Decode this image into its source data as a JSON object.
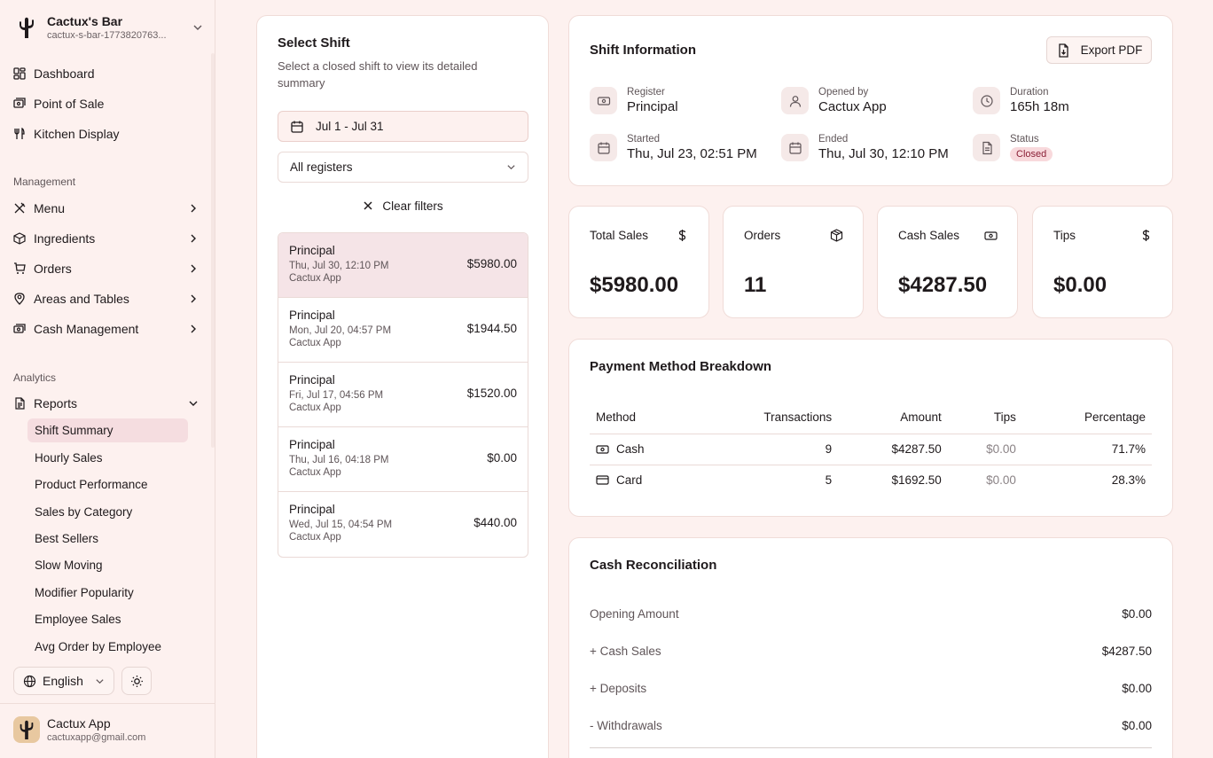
{
  "brand": {
    "name": "Cactux's Bar",
    "subdomain": "cactux-s-bar-1773820763..."
  },
  "nav": {
    "top": [
      {
        "label": "Dashboard",
        "icon": "dashboard-icon"
      },
      {
        "label": "Point of Sale",
        "icon": "pos-icon"
      },
      {
        "label": "Kitchen Display",
        "icon": "utensils-icon"
      }
    ],
    "management_label": "Management",
    "management": [
      {
        "label": "Menu",
        "icon": "utensils-crossed-icon"
      },
      {
        "label": "Ingredients",
        "icon": "package-icon"
      },
      {
        "label": "Orders",
        "icon": "cart-icon"
      },
      {
        "label": "Areas and Tables",
        "icon": "map-pin-icon"
      },
      {
        "label": "Cash Management",
        "icon": "cash-icon"
      }
    ],
    "analytics_label": "Analytics",
    "reports_label": "Reports",
    "reports": [
      "Shift Summary",
      "Hourly Sales",
      "Product Performance",
      "Sales by Category",
      "Best Sellers",
      "Slow Moving",
      "Modifier Popularity",
      "Employee Sales",
      "Avg Order by Employee"
    ]
  },
  "language": "English",
  "user": {
    "name": "Cactux App",
    "email": "cactuxapp@gmail.com"
  },
  "shift_select": {
    "title": "Select Shift",
    "description": "Select a closed shift to view its detailed summary",
    "date_range": "Jul 1 - Jul 31",
    "register_filter": "All registers",
    "clear_filters": "Clear filters",
    "shifts": [
      {
        "register": "Principal",
        "date": "Thu, Jul 30, 12:10 PM",
        "by": "Cactux App",
        "amount": "$5980.00"
      },
      {
        "register": "Principal",
        "date": "Mon, Jul 20, 04:57 PM",
        "by": "Cactux App",
        "amount": "$1944.50"
      },
      {
        "register": "Principal",
        "date": "Fri, Jul 17, 04:56 PM",
        "by": "Cactux App",
        "amount": "$1520.00"
      },
      {
        "register": "Principal",
        "date": "Thu, Jul 16, 04:18 PM",
        "by": "Cactux App",
        "amount": "$0.00"
      },
      {
        "register": "Principal",
        "date": "Wed, Jul 15, 04:54 PM",
        "by": "Cactux App",
        "amount": "$440.00"
      }
    ]
  },
  "shift_info": {
    "title": "Shift Information",
    "export_label": "Export PDF",
    "register_label": "Register",
    "register": "Principal",
    "opened_by_label": "Opened by",
    "opened_by": "Cactux App",
    "duration_label": "Duration",
    "duration": "165h 18m",
    "started_label": "Started",
    "started": "Thu, Jul 23, 02:51 PM",
    "ended_label": "Ended",
    "ended": "Thu, Jul 30, 12:10 PM",
    "status_label": "Status",
    "status": "Closed"
  },
  "stats": [
    {
      "label": "Total Sales",
      "value": "$5980.00",
      "icon": "dollar-icon"
    },
    {
      "label": "Orders",
      "value": "11",
      "icon": "package-icon"
    },
    {
      "label": "Cash Sales",
      "value": "$4287.50",
      "icon": "banknote-icon"
    },
    {
      "label": "Tips",
      "value": "$0.00",
      "icon": "dollar-icon"
    }
  ],
  "payment": {
    "title": "Payment Method Breakdown",
    "headers": [
      "Method",
      "Transactions",
      "Amount",
      "Tips",
      "Percentage"
    ],
    "rows": [
      {
        "method": "Cash",
        "icon": "banknote-icon",
        "transactions": "9",
        "amount": "$4287.50",
        "tips": "$0.00",
        "percentage": "71.7%"
      },
      {
        "method": "Card",
        "icon": "credit-card-icon",
        "transactions": "5",
        "amount": "$1692.50",
        "tips": "$0.00",
        "percentage": "28.3%"
      }
    ]
  },
  "recon": {
    "title": "Cash Reconciliation",
    "rows": [
      {
        "label": "Opening Amount",
        "value": "$0.00"
      },
      {
        "label": "+ Cash Sales",
        "value": "$4287.50"
      },
      {
        "label": "+ Deposits",
        "value": "$0.00"
      },
      {
        "label": "- Withdrawals",
        "value": "$0.00"
      }
    ]
  },
  "colors": {
    "accent": "#f5dde0",
    "background": "#fdf1ef",
    "status_badge": "#f8d9dc"
  }
}
